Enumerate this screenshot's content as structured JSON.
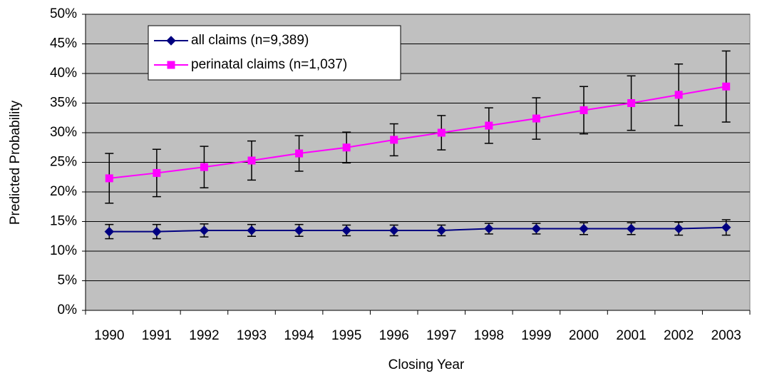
{
  "chart_data": {
    "type": "line",
    "x_label": "Closing Year",
    "y_label": "Predicted Probability",
    "categories": [
      "1990",
      "1991",
      "1992",
      "1993",
      "1994",
      "1995",
      "1996",
      "1997",
      "1998",
      "1999",
      "2000",
      "2001",
      "2002",
      "2003"
    ],
    "series": [
      {
        "name": "all claims (n=9,389)",
        "color": "#000080",
        "marker": "diamond",
        "values": [
          13.3,
          13.3,
          13.5,
          13.5,
          13.5,
          13.5,
          13.5,
          13.5,
          13.8,
          13.8,
          13.8,
          13.8,
          13.8,
          14.0
        ],
        "error": [
          1.2,
          1.2,
          1.1,
          1.0,
          1.0,
          0.9,
          0.9,
          0.9,
          0.9,
          0.9,
          1.0,
          1.0,
          1.1,
          1.3
        ]
      },
      {
        "name": "perinatal claims (n=1,037)",
        "color": "#ff00ff",
        "marker": "square",
        "values": [
          22.3,
          23.2,
          24.2,
          25.3,
          26.5,
          27.5,
          28.8,
          30.0,
          31.2,
          32.4,
          33.8,
          35.0,
          36.4,
          37.8
        ],
        "error": [
          4.2,
          4.0,
          3.5,
          3.3,
          3.0,
          2.6,
          2.7,
          2.9,
          3.0,
          3.5,
          4.0,
          4.6,
          5.2,
          6.0
        ]
      }
    ],
    "ylim": [
      0,
      50
    ],
    "yticks": [
      {
        "value": 0,
        "label": "0%"
      },
      {
        "value": 5,
        "label": "5%"
      },
      {
        "value": 10,
        "label": "10%"
      },
      {
        "value": 15,
        "label": "15%"
      },
      {
        "value": 20,
        "label": "20%"
      },
      {
        "value": 25,
        "label": "25%"
      },
      {
        "value": 30,
        "label": "30%"
      },
      {
        "value": 35,
        "label": "35%"
      },
      {
        "value": 40,
        "label": "40%"
      },
      {
        "value": 45,
        "label": "45%"
      },
      {
        "value": 50,
        "label": "50%"
      }
    ],
    "grid": true,
    "legend": "upper left",
    "plot_background": "#c0c0c0"
  }
}
